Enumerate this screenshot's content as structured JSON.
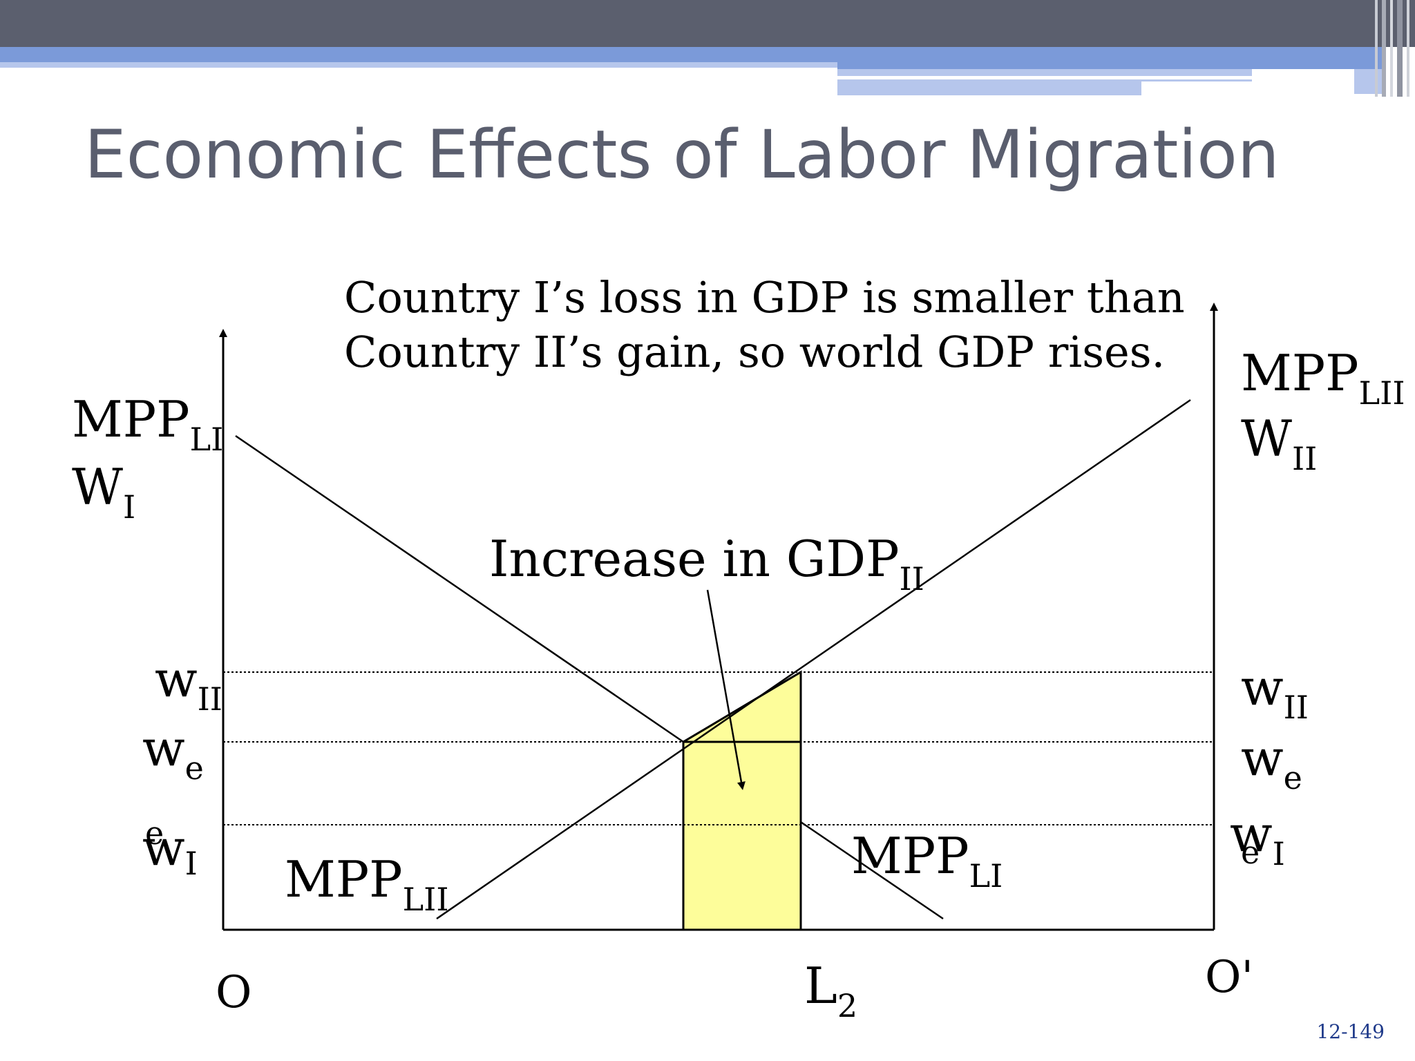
{
  "slide": {
    "title": "Economic Effects of Labor Migration",
    "slide_number": "12-149",
    "banner_colors": {
      "dark": "#5b5f6e",
      "mid": "#7b9ad9",
      "light": "#b6c6ec"
    }
  },
  "diagram": {
    "caption_line1": "Country I’s loss in GDP is smaller than",
    "caption_line2": "Country II’s gain, so world GDP rises.",
    "left_axis": {
      "main": "MPP",
      "sub": "LI",
      "second": "W",
      "second_sub": "I"
    },
    "right_axis": {
      "main": "MPP",
      "sub": "LII",
      "second": "W",
      "second_sub": "II"
    },
    "increase_label": {
      "main": "Increase in GDP",
      "sub": "II"
    },
    "left_wages": {
      "wII": {
        "main": "w",
        "sub": "II"
      },
      "we": {
        "main": "w",
        "sub": "e"
      },
      "wI": {
        "main": "w",
        "sub": "I"
      },
      "e_mark": "e"
    },
    "right_wages": {
      "wII": {
        "main": "w",
        "sub": "II"
      },
      "we": {
        "main": "w",
        "sub": "e"
      },
      "wI": {
        "main": "w",
        "sub": "I"
      },
      "e_mark": "e"
    },
    "curve_label_lii": {
      "main": "MPP",
      "sub": "LII"
    },
    "curve_label_li": {
      "main": "MPP",
      "sub": "LI"
    },
    "origin_left": "O",
    "origin_right": "O'",
    "l2_label": {
      "main": "L",
      "sub": "2"
    },
    "colors": {
      "highlight": "#fdfd9a",
      "line": "#000000"
    }
  }
}
